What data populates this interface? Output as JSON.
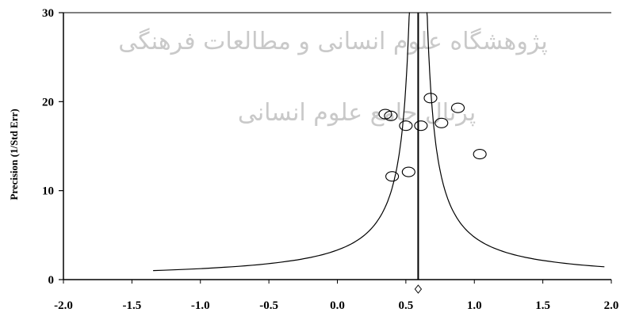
{
  "chart_data": {
    "type": "scatter",
    "title": "",
    "xlabel": "",
    "ylabel": "Precision (1/Std Err)",
    "xlim": [
      -2.0,
      2.0
    ],
    "ylim": [
      0,
      30
    ],
    "x_ticks": [
      "-2.0",
      "-1.5",
      "-1.0",
      "-0.5",
      "0.0",
      "0.5",
      "1.0",
      "1.5",
      "2.0"
    ],
    "y_ticks": [
      "0",
      "10",
      "20",
      "30"
    ],
    "grid": false,
    "pooled_effect": 0.59,
    "funnel_z": 1.96,
    "points": [
      {
        "x": 0.35,
        "y": 18.6
      },
      {
        "x": 0.39,
        "y": 18.4
      },
      {
        "x": 0.5,
        "y": 17.3
      },
      {
        "x": 0.61,
        "y": 17.3
      },
      {
        "x": 0.68,
        "y": 20.4
      },
      {
        "x": 0.76,
        "y": 17.6
      },
      {
        "x": 0.88,
        "y": 19.3
      },
      {
        "x": 1.04,
        "y": 14.1
      },
      {
        "x": 0.4,
        "y": 11.6
      },
      {
        "x": 0.52,
        "y": 12.1
      }
    ]
  },
  "watermark": {
    "line1": "پژوهشگاه علوم انسانی و مطالعات فرهنگی",
    "line2": "پرتال جامع علوم انسانی"
  }
}
